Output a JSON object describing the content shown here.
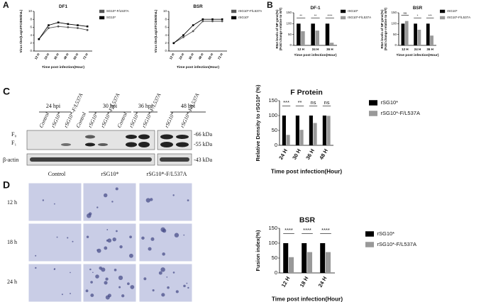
{
  "panel_labels": [
    "A",
    "B",
    "C",
    "D"
  ],
  "blot": {
    "timepoints": [
      "24 hpi",
      "30 hpi",
      "36 hpi",
      "48 hpi"
    ],
    "lanes": [
      "Control",
      "rSG10*",
      "rSG10*-F/L537A",
      "Control",
      "rSG10*",
      "rSG10*-F/L537A",
      "Control",
      "rSG10*",
      "rSG10*-F/L537A",
      "rSG10*",
      "rSG10*-F/L537A"
    ],
    "bands": [
      "F₀",
      "F₁",
      "β-actin"
    ],
    "markers": [
      "-66 kDa",
      "-55 kDa",
      "-43 kDa"
    ]
  },
  "micrographs": {
    "columns": [
      "Control",
      "rSG10*",
      "rSG10*-F/L537A"
    ],
    "rows": [
      "12 h",
      "18 h",
      "24 h"
    ]
  },
  "chart_data": [
    {
      "type": "line",
      "title": "DF1",
      "x_label": "Time post infection(Hour)",
      "y_label": "Virus titer(Log10TCID50/mL)",
      "categories": [
        "12 H",
        "24 H",
        "36 H",
        "48 H",
        "60 H",
        "72 H"
      ],
      "series": [
        {
          "name": "SG10*-F/L537A",
          "color": "#555555",
          "values": [
            3,
            5.8,
            6.2,
            6,
            5.8,
            5.3
          ]
        },
        {
          "name": "SG10*",
          "color": "#000000",
          "values": [
            3,
            6.5,
            7.2,
            6.8,
            6.5,
            6.2
          ]
        }
      ],
      "ylim": [
        0,
        10
      ],
      "yticks": [
        0,
        2,
        4,
        6,
        8,
        10
      ]
    },
    {
      "type": "line",
      "title": "BSR",
      "x_label": "Time post infection(Hour)",
      "y_label": "Virus titer(Log10TCID50/mL)",
      "categories": [
        "12 H",
        "24 H",
        "36 H",
        "48 H",
        "60 H",
        "72 H"
      ],
      "series": [
        {
          "name": "rSG10*-F/L537A",
          "color": "#555555",
          "values": [
            2,
            3.5,
            5,
            7.5,
            7.5,
            7.5
          ]
        },
        {
          "name": "rSG10*",
          "color": "#000000",
          "values": [
            2,
            4,
            6.5,
            8,
            8,
            8
          ]
        }
      ],
      "ylim": [
        0,
        10
      ],
      "yticks": [
        0,
        2,
        4,
        6,
        8,
        10
      ]
    },
    {
      "type": "bar",
      "title": "DF-1",
      "x_label": "Time post infection(Hour)",
      "y_label": [
        "RNA levels of NP gene(%)",
        "(Fold change relative to WT)"
      ],
      "categories": [
        "12 H",
        "24 H",
        "36 H"
      ],
      "series": [
        {
          "name": "rSG10*",
          "color": "#000000",
          "values": [
            100,
            100,
            100
          ]
        },
        {
          "name": "rSG10*-F/L537A",
          "color": "#999999",
          "values": [
            65,
            68,
            12
          ]
        }
      ],
      "ylim": [
        0,
        150
      ],
      "yticks": [
        0,
        50,
        100,
        150
      ],
      "significance": [
        "**",
        "**",
        "****"
      ]
    },
    {
      "type": "bar",
      "title": "BSR",
      "x_label": "Time post infection(Hour)",
      "y_label": [
        "RNA levels of NP gene(%)",
        "(Fold change relative to WT)"
      ],
      "categories": [
        "12 H",
        "24 H",
        "36 H"
      ],
      "series": [
        {
          "name": "rSG10*",
          "color": "#000000",
          "values": [
            100,
            100,
            100
          ]
        },
        {
          "name": "rSG10*-F/L537A",
          "color": "#999999",
          "values": [
            112,
            72,
            45
          ]
        }
      ],
      "ylim": [
        0,
        150
      ],
      "yticks": [
        0,
        50,
        100,
        150
      ],
      "significance": [
        "ns",
        "*",
        "***"
      ]
    },
    {
      "type": "bar",
      "title": "F Protein",
      "x_label": "Time post infection(Hour)",
      "y_label": "Relative Density to rSG10* (%)",
      "categories": [
        "24 H",
        "30 H",
        "36 H",
        "48 H"
      ],
      "series": [
        {
          "name": "rSG10*",
          "color": "#000000",
          "values": [
            100,
            100,
            100,
            100
          ]
        },
        {
          "name": "rSG10*-F/L537A",
          "color": "#999999",
          "values": [
            35,
            52,
            75,
            99
          ]
        }
      ],
      "ylim": [
        0,
        150
      ],
      "yticks": [
        0,
        50,
        100,
        150
      ],
      "significance": [
        "***",
        "**",
        "ns",
        "ns"
      ]
    },
    {
      "type": "bar",
      "title": "BSR",
      "x_label": "Time post infection(Hour)",
      "y_label": "Fusion index(%)",
      "categories": [
        "12 H",
        "18 H",
        "24 H"
      ],
      "series": [
        {
          "name": "rSG10*",
          "color": "#000000",
          "values": [
            100,
            100,
            100
          ]
        },
        {
          "name": "rSG10*-F/L537A",
          "color": "#999999",
          "values": [
            53,
            70,
            70
          ]
        }
      ],
      "ylim": [
        0,
        150
      ],
      "yticks": [
        0,
        50,
        100,
        150
      ],
      "significance": [
        "****",
        "****",
        "****"
      ]
    }
  ]
}
